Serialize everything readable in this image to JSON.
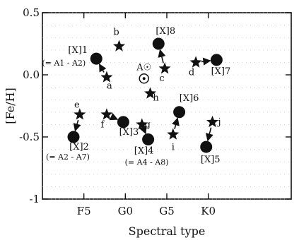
{
  "chart_data": {
    "type": "scatter",
    "xlabel": "Spectral type",
    "ylabel": "[Fe/H]",
    "xlim": [
      0,
      6
    ],
    "ylim": [
      -1,
      0.5
    ],
    "x_ticks": [
      {
        "value": 1,
        "label": "F5"
      },
      {
        "value": 2,
        "label": "G0"
      },
      {
        "value": 3,
        "label": "G5"
      },
      {
        "value": 4,
        "label": "K0"
      }
    ],
    "y_ticks": [
      {
        "value": 0.5,
        "label": "0.5"
      },
      {
        "value": 0,
        "label": "0.0"
      },
      {
        "value": -0.5,
        "label": "-0.5"
      },
      {
        "value": -1,
        "label": "-1"
      }
    ],
    "sun": {
      "x": 2.45,
      "y": -0.03,
      "label": "A☉"
    },
    "stars": [
      {
        "id": "a",
        "x": 1.55,
        "y": -0.02
      },
      {
        "id": "b",
        "x": 1.85,
        "y": 0.23
      },
      {
        "id": "c",
        "x": 2.95,
        "y": 0.05
      },
      {
        "id": "d",
        "x": 3.7,
        "y": 0.1
      },
      {
        "id": "e",
        "x": 0.9,
        "y": -0.32
      },
      {
        "id": "f",
        "x": 1.55,
        "y": -0.32
      },
      {
        "id": "g",
        "x": 2.4,
        "y": -0.4
      },
      {
        "id": "h",
        "x": 2.6,
        "y": -0.15
      },
      {
        "id": "i",
        "x": 3.15,
        "y": -0.48
      },
      {
        "id": "j",
        "x": 4.1,
        "y": -0.38
      }
    ],
    "circles": [
      {
        "id": "1",
        "x": 1.3,
        "y": 0.13,
        "label": "[X]1",
        "note": "(= A1 - A2)"
      },
      {
        "id": "2",
        "x": 0.75,
        "y": -0.5,
        "label": "[X]2",
        "note": "(= A2 - A7)"
      },
      {
        "id": "3",
        "x": 1.95,
        "y": -0.38,
        "label": "[X]3"
      },
      {
        "id": "4",
        "x": 2.55,
        "y": -0.52,
        "label": "[X]4",
        "note": "(= A4 - A8)"
      },
      {
        "id": "5",
        "x": 3.95,
        "y": -0.58,
        "label": "[X]5"
      },
      {
        "id": "6",
        "x": 3.3,
        "y": -0.3,
        "label": "[X]6"
      },
      {
        "id": "7",
        "x": 4.2,
        "y": 0.12,
        "label": "[X]7"
      },
      {
        "id": "8",
        "x": 2.8,
        "y": 0.25,
        "label": "[X]8"
      }
    ],
    "arrows": [
      {
        "from": "a",
        "to": "1"
      },
      {
        "from": "e",
        "to": "2"
      },
      {
        "from": "f",
        "to": "3"
      },
      {
        "from": "g",
        "to": "4"
      },
      {
        "from": "j",
        "to": "5"
      },
      {
        "from": "i",
        "to": "6"
      },
      {
        "from": "d",
        "to": "7"
      },
      {
        "from": "c",
        "to": "8"
      }
    ]
  }
}
